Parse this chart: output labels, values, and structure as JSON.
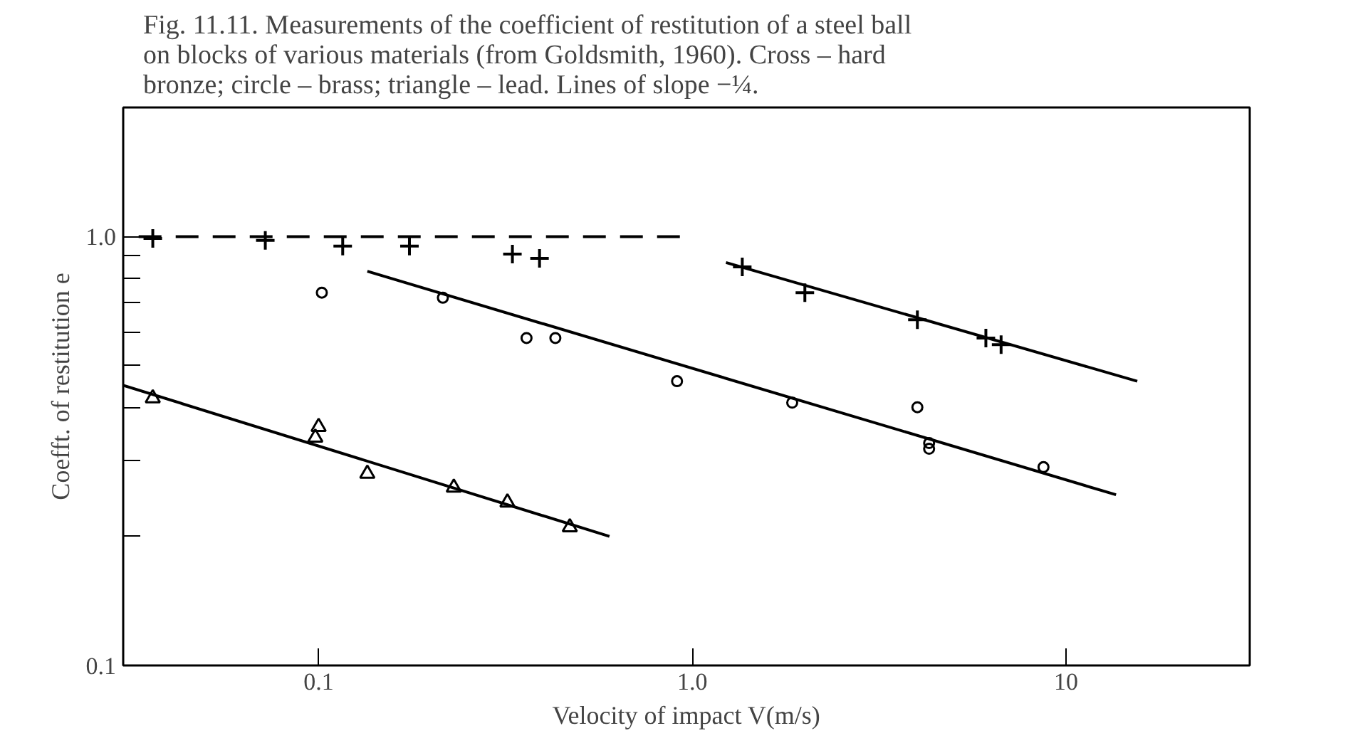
{
  "chart_data": {
    "type": "scatter",
    "title": "Fig. 11.11. Measurements of the coefficient of restitution of a steel ball on blocks of various materials (from Goldsmith, 1960). Cross – hard bronze; circle – brass; triangle – lead. Lines of slope −¼.",
    "xlabel": "Velocity of impact V(m/s)",
    "ylabel": "Coefft. of restitution e",
    "log": "xy",
    "grid": false,
    "xlim": [
      0.03,
      31
    ],
    "ylim": [
      0.1,
      2.0
    ],
    "xticks": [
      {
        "value": 0.1,
        "label": "0.1"
      },
      {
        "value": 1,
        "label": "1.0"
      },
      {
        "value": 10,
        "label": "10"
      }
    ],
    "yticks": [
      0.1,
      {
        "value": 0.2,
        "label": null
      },
      {
        "value": 0.3,
        "label": null
      },
      {
        "value": 0.4,
        "label": null
      },
      {
        "value": 0.5,
        "label": null
      },
      {
        "value": 0.6,
        "label": null
      },
      {
        "value": 0.7,
        "label": null
      },
      {
        "value": 0.8,
        "label": null
      },
      {
        "value": 0.9,
        "label": null
      },
      {
        "value": 1,
        "label": "1.0"
      }
    ],
    "series": [
      {
        "marker": "cross",
        "color": "#000000",
        "x": [
          0.036,
          0.072,
          0.116,
          0.175,
          0.33,
          0.39,
          1.36,
          2.0,
          4.0,
          6.1,
          6.7
        ],
        "values": [
          0.99,
          0.98,
          0.95,
          0.95,
          0.91,
          0.89,
          0.85,
          0.74,
          0.64,
          0.58,
          0.56
        ]
      },
      {
        "marker": "circle",
        "color": "#000000",
        "x": [
          0.102,
          0.215,
          0.36,
          0.43,
          0.91,
          1.85,
          4.0,
          4.3,
          4.3,
          8.7
        ],
        "values": [
          0.74,
          0.72,
          0.58,
          0.58,
          0.46,
          0.41,
          0.4,
          0.33,
          0.32,
          0.29
        ]
      },
      {
        "marker": "triangle",
        "color": "#000000",
        "x": [
          0.036,
          0.1,
          0.098,
          0.135,
          0.23,
          0.32,
          0.47
        ],
        "values": [
          0.42,
          0.36,
          0.34,
          0.28,
          0.26,
          0.24,
          0.21
        ]
      },
      {
        "type": "line",
        "line_style": "dashed",
        "color": "#000000",
        "x": [
          0.033,
          0.95
        ],
        "values": [
          1.0,
          1.0
        ]
      },
      {
        "type": "line",
        "line_style": "solid",
        "color": "#000000",
        "x": [
          1.23,
          15.5
        ],
        "values": [
          0.87,
          0.46
        ]
      },
      {
        "type": "line",
        "line_style": "solid",
        "color": "#000000",
        "x": [
          0.135,
          13.6
        ],
        "values": [
          0.83,
          0.25
        ]
      },
      {
        "type": "line",
        "line_style": "solid",
        "color": "#000000",
        "x": [
          0.03,
          0.6
        ],
        "values": [
          0.45,
          0.2
        ]
      }
    ]
  }
}
